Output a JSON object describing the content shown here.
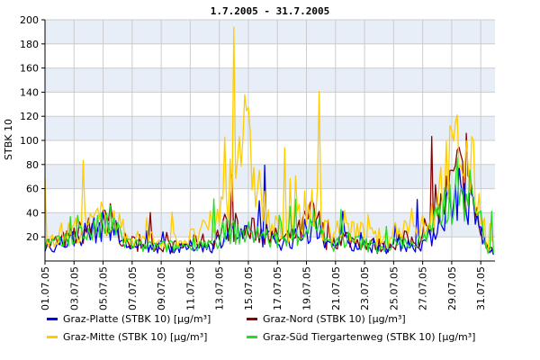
{
  "chart_data": {
    "type": "line",
    "title": "1.7.2005 - 31.7.2005",
    "xlabel": "",
    "ylabel": "STBK 10",
    "ylim": [
      0,
      200
    ],
    "yticks": [
      20,
      40,
      60,
      80,
      100,
      120,
      140,
      160,
      180,
      200
    ],
    "xlim": [
      "2005-07-01",
      "2005-07-31T23:30"
    ],
    "xticks": [
      "01.07.05",
      "03.07.05",
      "05.07.05",
      "07.07.05",
      "09.07.05",
      "11.07.05",
      "13.07.05",
      "15.07.05",
      "17.07.05",
      "19.07.05",
      "21.07.05",
      "23.07.05",
      "25.07.05",
      "27.07.05",
      "29.07.05",
      "31.07.05"
    ],
    "grid": true,
    "band_colors": [
      "#e8eef7",
      "#ffffff"
    ],
    "legend_position": "bottom",
    "series": [
      {
        "name": "Graz-Platte (STBK 10) [µg/m³]",
        "color": "#0000ee",
        "x": [
          "2005-07-01",
          "2005-07-02",
          "2005-07-03",
          "2005-07-04",
          "2005-07-05",
          "2005-07-06",
          "2005-07-07",
          "2005-07-08",
          "2005-07-09",
          "2005-07-10",
          "2005-07-11",
          "2005-07-12",
          "2005-07-13",
          "2005-07-14",
          "2005-07-15",
          "2005-07-16",
          "2005-07-17",
          "2005-07-18",
          "2005-07-19",
          "2005-07-20",
          "2005-07-21",
          "2005-07-22",
          "2005-07-23",
          "2005-07-24",
          "2005-07-25",
          "2005-07-26",
          "2005-07-27",
          "2005-07-28",
          "2005-07-29",
          "2005-07-30",
          "2005-07-31"
        ],
        "values": [
          12,
          16,
          22,
          26,
          30,
          14,
          10,
          12,
          11,
          10,
          14,
          12,
          24,
          20,
          22,
          18,
          15,
          20,
          28,
          12,
          18,
          14,
          12,
          10,
          14,
          12,
          18,
          42,
          60,
          40,
          8
        ]
      },
      {
        "name": "Graz-Nord (STBK 10) [µg/m³]",
        "color": "#880000",
        "x": [
          "2005-07-01",
          "2005-07-02",
          "2005-07-03",
          "2005-07-04",
          "2005-07-05",
          "2005-07-06",
          "2005-07-07",
          "2005-07-08",
          "2005-07-09",
          "2005-07-10",
          "2005-07-11",
          "2005-07-12",
          "2005-07-13",
          "2005-07-14",
          "2005-07-15",
          "2005-07-16",
          "2005-07-17",
          "2005-07-18",
          "2005-07-19",
          "2005-07-20",
          "2005-07-21",
          "2005-07-22",
          "2005-07-23",
          "2005-07-24",
          "2005-07-25",
          "2005-07-26",
          "2005-07-27",
          "2005-07-28",
          "2005-07-29",
          "2005-07-30",
          "2005-07-31"
        ],
        "values": [
          15,
          18,
          24,
          28,
          34,
          16,
          14,
          14,
          12,
          12,
          16,
          16,
          30,
          22,
          26,
          20,
          18,
          24,
          40,
          14,
          20,
          16,
          14,
          12,
          18,
          16,
          24,
          50,
          72,
          45,
          10
        ]
      },
      {
        "name": "Graz-Mitte (STBK 10) [µg/m³]",
        "color": "#ffcc00",
        "x": [
          "2005-07-01",
          "2005-07-02",
          "2005-07-03",
          "2005-07-04",
          "2005-07-05",
          "2005-07-06",
          "2005-07-07",
          "2005-07-08",
          "2005-07-09",
          "2005-07-10",
          "2005-07-11",
          "2005-07-12",
          "2005-07-13",
          "2005-07-14",
          "2005-07-15",
          "2005-07-16",
          "2005-07-17",
          "2005-07-18",
          "2005-07-19",
          "2005-07-20",
          "2005-07-21",
          "2005-07-22",
          "2005-07-23",
          "2005-07-24",
          "2005-07-25",
          "2005-07-26",
          "2005-07-27",
          "2005-07-28",
          "2005-07-29",
          "2005-07-30",
          "2005-07-31"
        ],
        "values": [
          20,
          24,
          28,
          32,
          40,
          22,
          18,
          18,
          16,
          18,
          20,
          30,
          48,
          110,
          70,
          28,
          24,
          34,
          50,
          20,
          30,
          24,
          20,
          18,
          30,
          26,
          36,
          70,
          95,
          70,
          14
        ]
      },
      {
        "name": "Graz-Süd Tiergartenweg (STBK 10) [µg/m³]",
        "color": "#22dd22",
        "x": [
          "2005-07-01",
          "2005-07-02",
          "2005-07-03",
          "2005-07-04",
          "2005-07-05",
          "2005-07-06",
          "2005-07-07",
          "2005-07-08",
          "2005-07-09",
          "2005-07-10",
          "2005-07-11",
          "2005-07-12",
          "2005-07-13",
          "2005-07-14",
          "2005-07-15",
          "2005-07-16",
          "2005-07-17",
          "2005-07-18",
          "2005-07-19",
          "2005-07-20",
          "2005-07-21",
          "2005-07-22",
          "2005-07-23",
          "2005-07-24",
          "2005-07-25",
          "2005-07-26",
          "2005-07-27",
          "2005-07-28",
          "2005-07-29",
          "2005-07-30",
          "2005-07-31"
        ],
        "values": [
          14,
          16,
          22,
          26,
          32,
          16,
          12,
          12,
          12,
          12,
          16,
          14,
          26,
          22,
          24,
          18,
          16,
          22,
          32,
          12,
          18,
          16,
          12,
          12,
          16,
          14,
          22,
          46,
          62,
          52,
          10
        ]
      }
    ]
  }
}
